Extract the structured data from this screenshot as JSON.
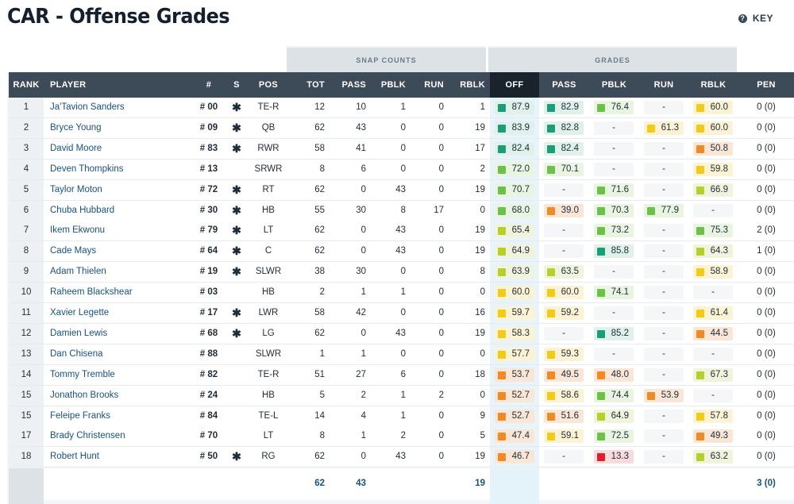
{
  "page": {
    "title": "CAR - Offense Grades",
    "key_label": "KEY",
    "key_icon": "question-circle-icon"
  },
  "groups": {
    "snap_counts": "SNAP COUNTS",
    "grades": "GRADES"
  },
  "columns": [
    "RANK",
    "PLAYER",
    "#",
    "S",
    "POS",
    "TOT",
    "PASS",
    "PBLK",
    "RUN",
    "RBLK",
    "OFF",
    "PASS",
    "PBLK",
    "RUN",
    "RBLK",
    "PEN"
  ],
  "grade_colors": {
    "elite": "#1a9e78",
    "high": "#6cc14b",
    "above": "#b7cf2a",
    "avg": "#f2cb16",
    "below": "#f08a24",
    "poor": "#d8222f"
  },
  "grade_bg": {
    "elite": "#e0f1ea",
    "high": "#e9f4e1",
    "above": "#f1f4dc",
    "avg": "#fbf3d3",
    "below": "#fae6d6",
    "poor": "#f8dbdd"
  },
  "rows": [
    {
      "rank": "1",
      "player": "Ja'Tavion Sanders",
      "num": "# 00",
      "s": "✱",
      "pos": "TE-R",
      "tot": "12",
      "pass": "10",
      "pblk": "1",
      "run": "0",
      "rblk": "1",
      "off": "87.9",
      "g_pass": "82.9",
      "g_pblk": "76.4",
      "g_run": "-",
      "g_rblk": "60.0",
      "pen": "0 (0)",
      "c_off": "elite",
      "c_pass": "elite",
      "c_pblk": "high",
      "c_run": "",
      "c_rblk": "avg"
    },
    {
      "rank": "2",
      "player": "Bryce Young",
      "num": "# 09",
      "s": "✱",
      "pos": "QB",
      "tot": "62",
      "pass": "43",
      "pblk": "0",
      "run": "0",
      "rblk": "19",
      "off": "83.9",
      "g_pass": "82.8",
      "g_pblk": "-",
      "g_run": "61.3",
      "g_rblk": "60.0",
      "pen": "0 (0)",
      "c_off": "elite",
      "c_pass": "elite",
      "c_pblk": "",
      "c_run": "avg",
      "c_rblk": "avg"
    },
    {
      "rank": "3",
      "player": "David Moore",
      "num": "# 83",
      "s": "✱",
      "pos": "RWR",
      "tot": "58",
      "pass": "41",
      "pblk": "0",
      "run": "0",
      "rblk": "17",
      "off": "82.4",
      "g_pass": "82.4",
      "g_pblk": "-",
      "g_run": "-",
      "g_rblk": "50.8",
      "pen": "0 (0)",
      "c_off": "elite",
      "c_pass": "elite",
      "c_pblk": "",
      "c_run": "",
      "c_rblk": "below"
    },
    {
      "rank": "4",
      "player": "Deven Thompkins",
      "num": "# 13",
      "s": "",
      "pos": "SRWR",
      "tot": "8",
      "pass": "6",
      "pblk": "0",
      "run": "0",
      "rblk": "2",
      "off": "72.0",
      "g_pass": "70.1",
      "g_pblk": "-",
      "g_run": "-",
      "g_rblk": "59.8",
      "pen": "0 (0)",
      "c_off": "high",
      "c_pass": "high",
      "c_pblk": "",
      "c_run": "",
      "c_rblk": "avg"
    },
    {
      "rank": "5",
      "player": "Taylor Moton",
      "num": "# 72",
      "s": "✱",
      "pos": "RT",
      "tot": "62",
      "pass": "0",
      "pblk": "43",
      "run": "0",
      "rblk": "19",
      "off": "70.7",
      "g_pass": "-",
      "g_pblk": "71.6",
      "g_run": "-",
      "g_rblk": "66.9",
      "pen": "0 (0)",
      "c_off": "high",
      "c_pass": "",
      "c_pblk": "high",
      "c_run": "",
      "c_rblk": "above"
    },
    {
      "rank": "6",
      "player": "Chuba Hubbard",
      "num": "# 30",
      "s": "✱",
      "pos": "HB",
      "tot": "55",
      "pass": "30",
      "pblk": "8",
      "run": "17",
      "rblk": "0",
      "off": "68.0",
      "g_pass": "39.0",
      "g_pblk": "70.3",
      "g_run": "77.9",
      "g_rblk": "-",
      "pen": "0 (0)",
      "c_off": "high",
      "c_pass": "below",
      "c_pblk": "high",
      "c_run": "high",
      "c_rblk": ""
    },
    {
      "rank": "7",
      "player": "Ikem Ekwonu",
      "num": "# 79",
      "s": "✱",
      "pos": "LT",
      "tot": "62",
      "pass": "0",
      "pblk": "43",
      "run": "0",
      "rblk": "19",
      "off": "65.4",
      "g_pass": "-",
      "g_pblk": "73.2",
      "g_run": "-",
      "g_rblk": "75.3",
      "pen": "2 (0)",
      "c_off": "above",
      "c_pass": "",
      "c_pblk": "high",
      "c_run": "",
      "c_rblk": "high"
    },
    {
      "rank": "8",
      "player": "Cade Mays",
      "num": "# 64",
      "s": "✱",
      "pos": "C",
      "tot": "62",
      "pass": "0",
      "pblk": "43",
      "run": "0",
      "rblk": "19",
      "off": "64.9",
      "g_pass": "-",
      "g_pblk": "85.8",
      "g_run": "-",
      "g_rblk": "64.3",
      "pen": "1 (0)",
      "c_off": "above",
      "c_pass": "",
      "c_pblk": "elite",
      "c_run": "",
      "c_rblk": "above"
    },
    {
      "rank": "9",
      "player": "Adam Thielen",
      "num": "# 19",
      "s": "✱",
      "pos": "SLWR",
      "tot": "38",
      "pass": "30",
      "pblk": "0",
      "run": "0",
      "rblk": "8",
      "off": "63.9",
      "g_pass": "63.5",
      "g_pblk": "-",
      "g_run": "-",
      "g_rblk": "58.9",
      "pen": "0 (0)",
      "c_off": "above",
      "c_pass": "above",
      "c_pblk": "",
      "c_run": "",
      "c_rblk": "avg"
    },
    {
      "rank": "10",
      "player": "Raheem Blackshear",
      "num": "# 03",
      "s": "",
      "pos": "HB",
      "tot": "2",
      "pass": "1",
      "pblk": "1",
      "run": "0",
      "rblk": "0",
      "off": "60.0",
      "g_pass": "60.0",
      "g_pblk": "74.1",
      "g_run": "-",
      "g_rblk": "-",
      "pen": "0 (0)",
      "c_off": "avg",
      "c_pass": "avg",
      "c_pblk": "high",
      "c_run": "",
      "c_rblk": ""
    },
    {
      "rank": "11",
      "player": "Xavier Legette",
      "num": "# 17",
      "s": "✱",
      "pos": "LWR",
      "tot": "58",
      "pass": "42",
      "pblk": "0",
      "run": "0",
      "rblk": "16",
      "off": "59.7",
      "g_pass": "59.2",
      "g_pblk": "-",
      "g_run": "-",
      "g_rblk": "61.4",
      "pen": "0 (0)",
      "c_off": "avg",
      "c_pass": "avg",
      "c_pblk": "",
      "c_run": "",
      "c_rblk": "avg"
    },
    {
      "rank": "12",
      "player": "Damien Lewis",
      "num": "# 68",
      "s": "✱",
      "pos": "LG",
      "tot": "62",
      "pass": "0",
      "pblk": "43",
      "run": "0",
      "rblk": "19",
      "off": "58.3",
      "g_pass": "-",
      "g_pblk": "85.2",
      "g_run": "-",
      "g_rblk": "44.5",
      "pen": "0 (0)",
      "c_off": "avg",
      "c_pass": "",
      "c_pblk": "elite",
      "c_run": "",
      "c_rblk": "below"
    },
    {
      "rank": "13",
      "player": "Dan Chisena",
      "num": "# 88",
      "s": "",
      "pos": "SLWR",
      "tot": "1",
      "pass": "1",
      "pblk": "0",
      "run": "0",
      "rblk": "0",
      "off": "57.7",
      "g_pass": "59.3",
      "g_pblk": "-",
      "g_run": "-",
      "g_rblk": "-",
      "pen": "0 (0)",
      "c_off": "avg",
      "c_pass": "avg",
      "c_pblk": "",
      "c_run": "",
      "c_rblk": ""
    },
    {
      "rank": "14",
      "player": "Tommy Tremble",
      "num": "# 82",
      "s": "",
      "pos": "TE-R",
      "tot": "51",
      "pass": "27",
      "pblk": "6",
      "run": "0",
      "rblk": "18",
      "off": "53.7",
      "g_pass": "49.5",
      "g_pblk": "48.0",
      "g_run": "-",
      "g_rblk": "67.3",
      "pen": "0 (0)",
      "c_off": "below",
      "c_pass": "below",
      "c_pblk": "below",
      "c_run": "",
      "c_rblk": "above"
    },
    {
      "rank": "15",
      "player": "Jonathon Brooks",
      "num": "# 24",
      "s": "",
      "pos": "HB",
      "tot": "5",
      "pass": "2",
      "pblk": "1",
      "run": "2",
      "rblk": "0",
      "off": "52.7",
      "g_pass": "58.6",
      "g_pblk": "74.4",
      "g_run": "53.9",
      "g_rblk": "-",
      "pen": "0 (0)",
      "c_off": "below",
      "c_pass": "avg",
      "c_pblk": "high",
      "c_run": "below",
      "c_rblk": ""
    },
    {
      "rank": "15",
      "player": "Feleipe Franks",
      "num": "# 84",
      "s": "",
      "pos": "TE-L",
      "tot": "14",
      "pass": "4",
      "pblk": "1",
      "run": "0",
      "rblk": "9",
      "off": "52.7",
      "g_pass": "51.6",
      "g_pblk": "64.9",
      "g_run": "-",
      "g_rblk": "57.8",
      "pen": "0 (0)",
      "c_off": "below",
      "c_pass": "below",
      "c_pblk": "above",
      "c_run": "",
      "c_rblk": "avg"
    },
    {
      "rank": "17",
      "player": "Brady Christensen",
      "num": "# 70",
      "s": "",
      "pos": "LT",
      "tot": "8",
      "pass": "1",
      "pblk": "2",
      "run": "0",
      "rblk": "5",
      "off": "47.4",
      "g_pass": "59.1",
      "g_pblk": "72.5",
      "g_run": "-",
      "g_rblk": "49.3",
      "pen": "0 (0)",
      "c_off": "below",
      "c_pass": "avg",
      "c_pblk": "high",
      "c_run": "",
      "c_rblk": "below"
    },
    {
      "rank": "18",
      "player": "Robert Hunt",
      "num": "# 50",
      "s": "✱",
      "pos": "RG",
      "tot": "62",
      "pass": "0",
      "pblk": "43",
      "run": "0",
      "rblk": "19",
      "off": "46.7",
      "g_pass": "-",
      "g_pblk": "13.3",
      "g_run": "-",
      "g_rblk": "63.2",
      "pen": "0 (0)",
      "c_off": "below",
      "c_pass": "",
      "c_pblk": "poor",
      "c_run": "",
      "c_rblk": "above"
    }
  ],
  "totals": {
    "tot": "62",
    "pass": "43",
    "rblk": "19",
    "pen": "3 (0)"
  }
}
